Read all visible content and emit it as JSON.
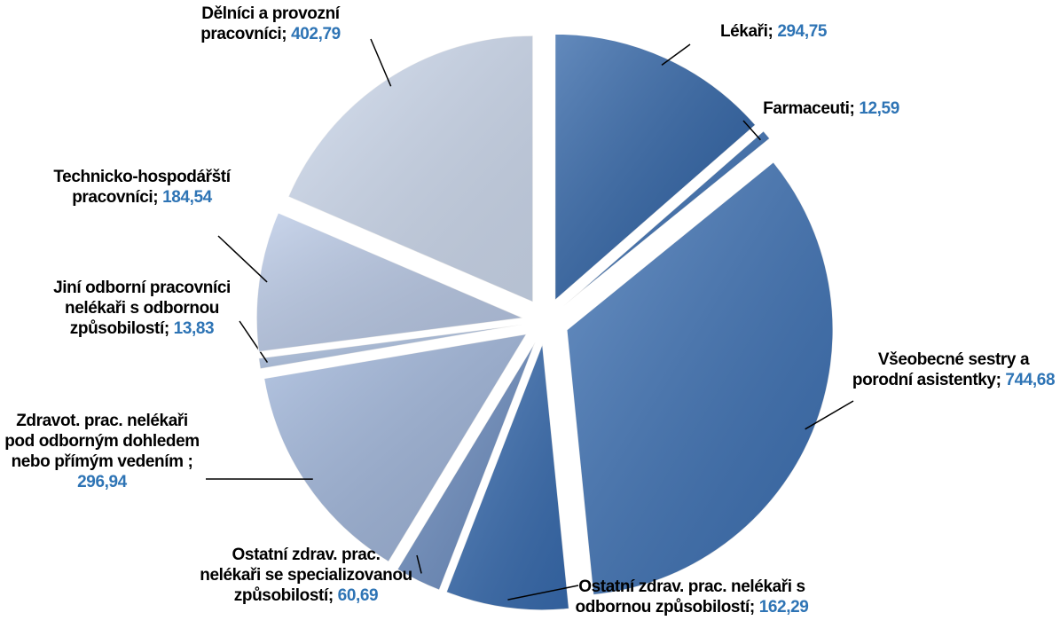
{
  "chart_data": {
    "type": "pie",
    "categories": [
      "Lékaři;",
      "Farmaceuti;",
      "Všeobecné sestry a porodní asistentky;",
      "Ostatní zdrav. prac. nelékaři s odbornou způsobilostí;",
      "Ostatní zdrav. prac. nelékaři se specializovanou způsobilostí;",
      "Zdravot. prac. nelékaři pod odborným dohledem nebo přímým vedením ;",
      "Jiní odborní pracovníci nelékaři s odbornou způsobilostí;",
      "Technicko-hospodářští pracovníci;",
      "Dělníci a provozní pracovníci;"
    ],
    "values": [
      294.75,
      12.59,
      744.68,
      162.29,
      60.69,
      296.94,
      13.83,
      184.54,
      402.79
    ],
    "value_labels": [
      "294,75",
      "12,59",
      "744,68",
      "162,29",
      "60,69",
      "296,94",
      "13,83",
      "184,54",
      "402,79"
    ],
    "colors": [
      "#2f63a6",
      "#3a6eb1",
      "#3d71b4",
      "#386cb0",
      "#6e8fc2",
      "#9fb5da",
      "#aec2e2",
      "#b9c9e6",
      "#cfdbef"
    ]
  }
}
